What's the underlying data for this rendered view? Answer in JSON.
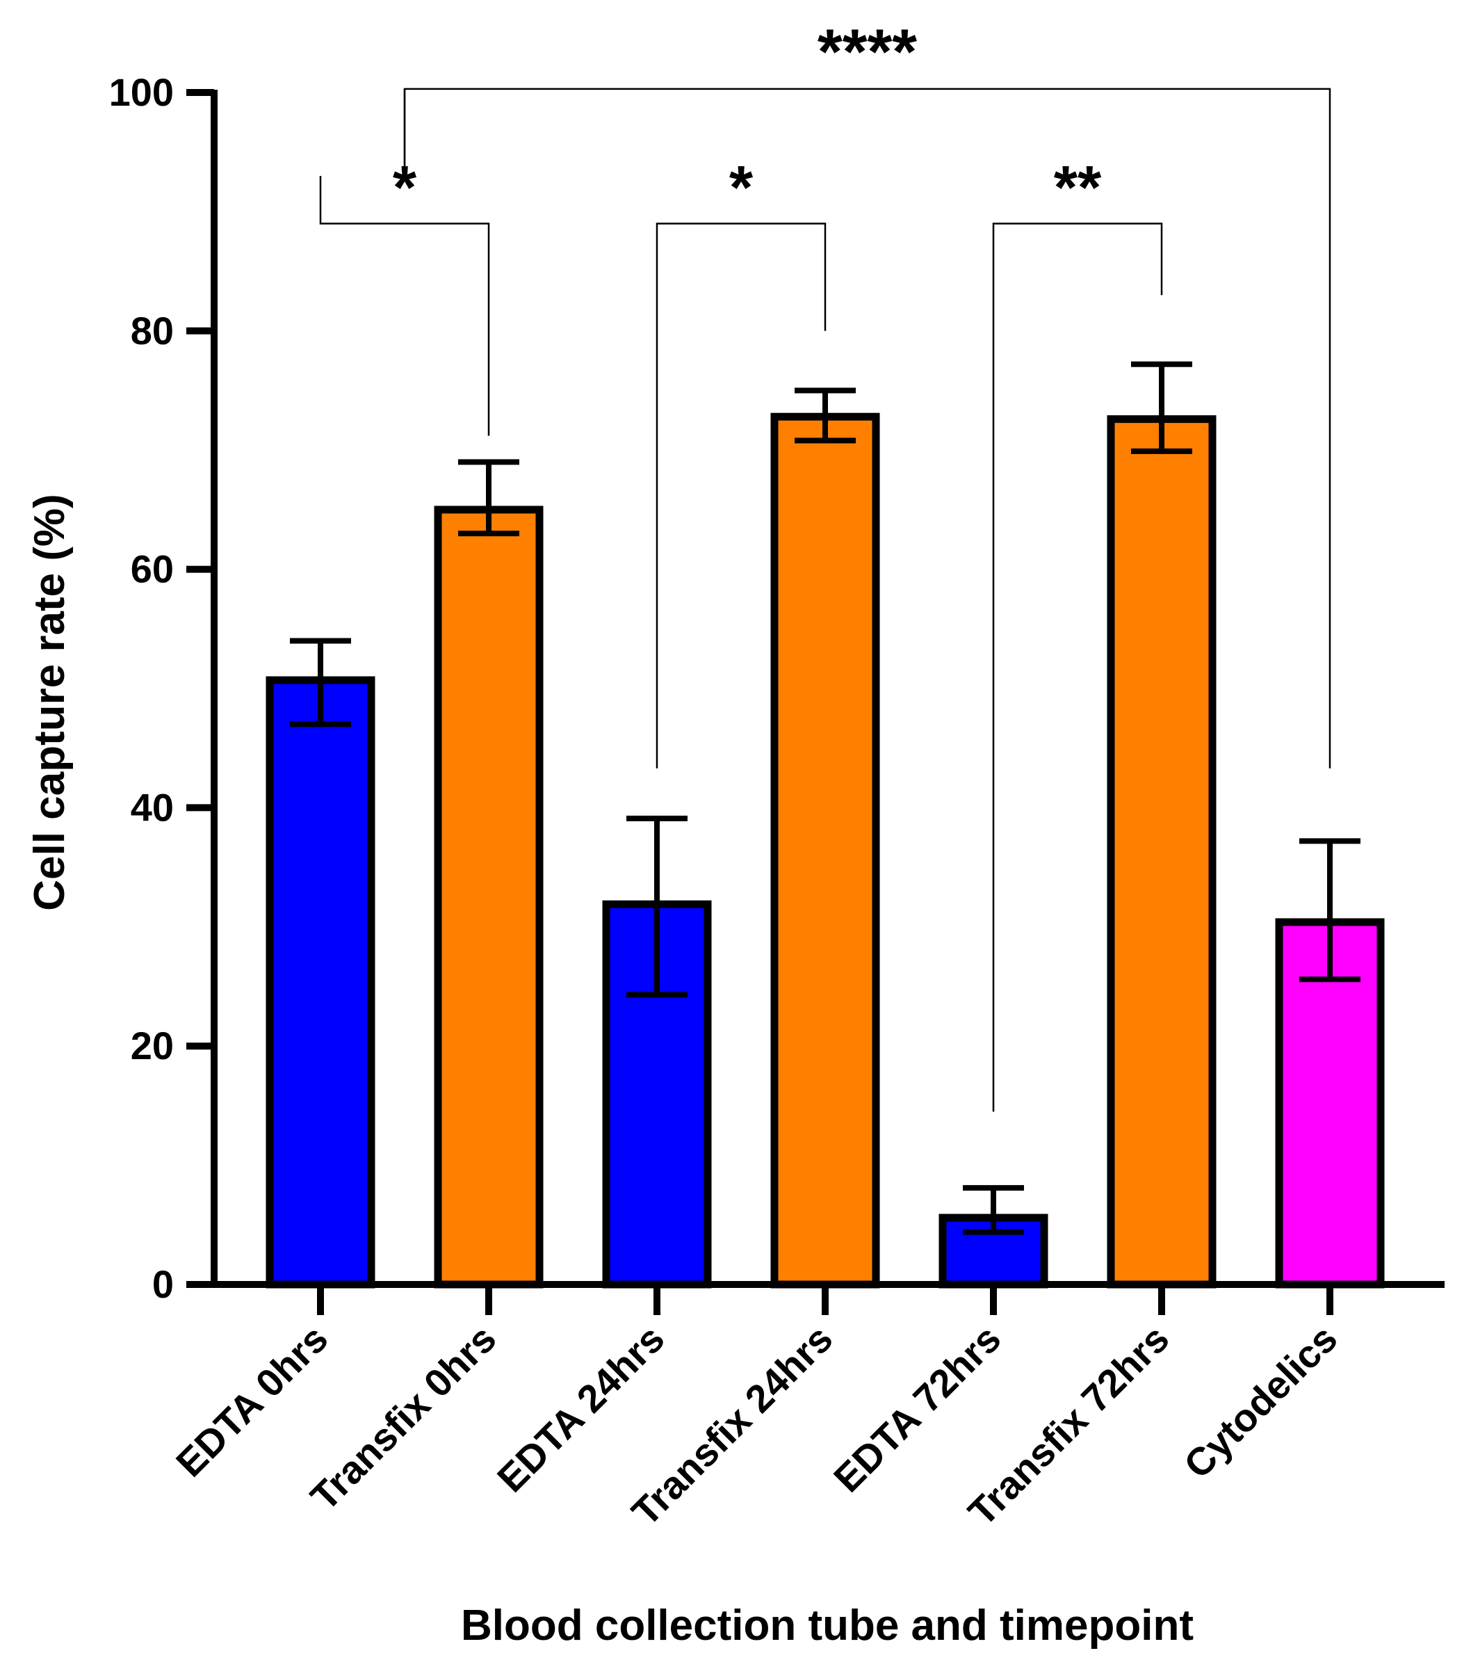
{
  "chart_data": {
    "type": "bar",
    "title": "",
    "xlabel": "Blood collection tube and timepoint",
    "ylabel": "Cell capture rate (%)",
    "ylim": [
      0,
      100
    ],
    "yticks": [
      0,
      20,
      40,
      60,
      80,
      100
    ],
    "ytick_labels": [
      "0",
      "20",
      "40",
      "60",
      "80",
      "100"
    ],
    "grid": false,
    "categories": [
      "EDTA 0hrs",
      "Transfix 0hrs",
      "EDTA 24hrs",
      "Transfix 24hrs",
      "EDTA 72hrs",
      "Transfix 72hrs",
      "Cytodelics"
    ],
    "values": [
      50.7,
      65.0,
      31.9,
      72.8,
      5.6,
      72.6,
      30.4
    ],
    "error_low": [
      47.0,
      63.0,
      24.3,
      70.8,
      4.4,
      69.9,
      25.6
    ],
    "error_high": [
      54.0,
      69.0,
      39.1,
      75.0,
      8.1,
      77.2,
      37.2
    ],
    "colors": [
      "#0000FF",
      "#FF8000",
      "#0000FF",
      "#FF8000",
      "#0000FF",
      "#FF8000",
      "#FF00FF"
    ],
    "significance": [
      {
        "from": 0,
        "to": 1,
        "label": "*",
        "y": 89.0,
        "left_end": 93.0,
        "right_end": 71.2
      },
      {
        "from": 2,
        "to": 3,
        "label": "*",
        "y": 89.0,
        "left_end": 43.3,
        "right_end": 80.0
      },
      {
        "from": 4,
        "to": 5,
        "label": "**",
        "y": 89.0,
        "left_end": 14.5,
        "right_end": 83.0
      },
      {
        "from": 0.5,
        "to": 6,
        "label": "****",
        "y": 100.3,
        "left_end": 93.3,
        "right_end": 43.3
      },
      {
        "from": 0,
        "to": 1,
        "label": "",
        "y": 93.0,
        "left_end": 93.0,
        "right_end": 93.0
      }
    ]
  }
}
